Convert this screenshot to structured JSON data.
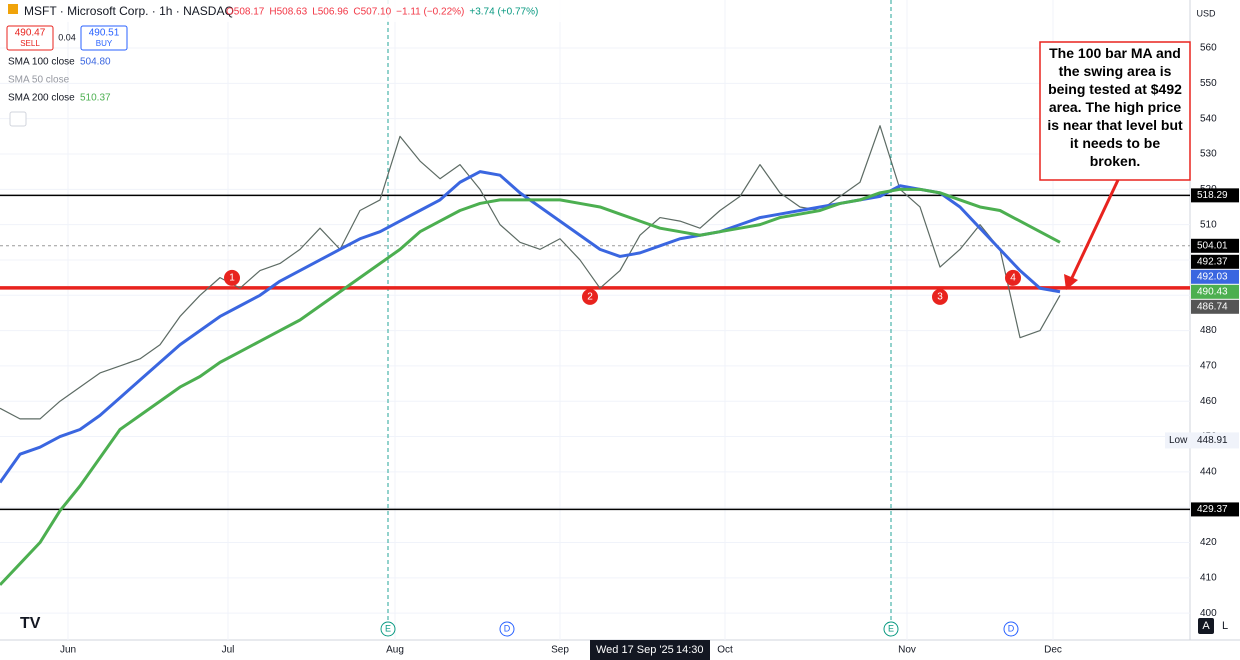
{
  "chart_data": {
    "type": "line",
    "price": {
      "color": "#5d6b64",
      "values": [
        458,
        455,
        455,
        460,
        464,
        468,
        470,
        472,
        476,
        484,
        490,
        495,
        492,
        497,
        499,
        503,
        509,
        503,
        514,
        517,
        535,
        528,
        523,
        527,
        520,
        510,
        505,
        503,
        506,
        500,
        492,
        497,
        507,
        512,
        511,
        509,
        514,
        518,
        527,
        519,
        515,
        514,
        518,
        522,
        538,
        520,
        515,
        498,
        503,
        510,
        503,
        478,
        480,
        490
      ]
    },
    "series": [
      {
        "name": "SMA 100 close",
        "color": "#3a66e0",
        "last": "504.80",
        "values": [
          437,
          445,
          447,
          450,
          452,
          456,
          461,
          466,
          471,
          476,
          480,
          484,
          487,
          490,
          494,
          497,
          500,
          503,
          506,
          508,
          511,
          514,
          517,
          522,
          525,
          524,
          519,
          515,
          511,
          507,
          503,
          501,
          502,
          504,
          506,
          507,
          508,
          510,
          512,
          513,
          514,
          515,
          516,
          517,
          518,
          521,
          520,
          519,
          515,
          509,
          503,
          497,
          492,
          491
        ]
      },
      {
        "name": "SMA 200 close",
        "color": "#4caf50",
        "last": "510.37",
        "values": [
          408,
          414,
          420,
          429,
          436,
          444,
          452,
          456,
          460,
          464,
          467,
          471,
          474,
          477,
          480,
          483,
          487,
          491,
          495,
          499,
          503,
          508,
          511,
          514,
          516,
          517,
          517,
          517,
          517,
          516,
          515,
          513,
          511,
          509,
          508,
          507,
          508,
          509,
          510,
          512,
          513,
          514,
          516,
          517,
          519,
          520,
          520,
          519,
          517,
          515,
          514,
          511,
          508,
          505
        ]
      }
    ],
    "ylim": [
      392.4,
      573.6
    ],
    "yticks": [
      400,
      410,
      420,
      430,
      440,
      450,
      460,
      470,
      480,
      490,
      500,
      510,
      520,
      530,
      540,
      550,
      560
    ],
    "xlim": [
      0,
      59.5
    ],
    "xticks": [
      {
        "value": 3.4,
        "label": "Jun"
      },
      {
        "value": 11.4,
        "label": "Jul"
      },
      {
        "value": 19.75,
        "label": "Aug"
      },
      {
        "value": 28,
        "label": "Sep"
      },
      {
        "value": 36.25,
        "label": "Oct"
      },
      {
        "value": 45.35,
        "label": "Nov"
      },
      {
        "value": 52.65,
        "label": "Dec"
      }
    ],
    "grid": true,
    "levels": [
      {
        "value": 518.29,
        "color": "#000000",
        "width": 1.5
      },
      {
        "value": 429.37,
        "color": "#000000",
        "width": 1.5
      },
      {
        "value": 492.1,
        "color": "#000000",
        "width": 1.5
      },
      {
        "value": 492.1,
        "color": "#e8231e",
        "width": 3.5
      },
      {
        "value": 504.01,
        "color": "#9a9a9a",
        "width": 1,
        "dash": true
      }
    ],
    "price_labels": [
      {
        "value": 518.29,
        "bg": "#000000",
        "fg": "#ffffff"
      },
      {
        "value": 504.01,
        "bg": "#000000",
        "fg": "#ffffff"
      },
      {
        "value": 492.37,
        "bg": "#000000",
        "fg": "#ffffff"
      },
      {
        "value": 492.03,
        "bg": "#3a66e0",
        "fg": "#ffffff"
      },
      {
        "value": 490.43,
        "bg": "#4caf50",
        "fg": "#ffffff"
      },
      {
        "value": 486.74,
        "bg": "#555555",
        "fg": "#ffffff"
      },
      {
        "value": 429.37,
        "bg": "#000000",
        "fg": "#ffffff"
      }
    ],
    "markers": [
      {
        "label": "1",
        "x": 11.6
      },
      {
        "label": "2",
        "x": 29.5
      },
      {
        "label": "3",
        "x": 47
      },
      {
        "label": "4",
        "x": 50.65
      }
    ],
    "marker_level": 492.1,
    "annotation": "The 100 bar MA and the swing area is being tested at $492 area.  The high price is near that level but it needs to be broken.",
    "low": {
      "label": "Low",
      "value": 448.91
    }
  },
  "ui": {
    "symbol": "MSFT · Microsoft Corp. · 1h · NASDAQ",
    "ohlc": [
      "O508.17",
      "H508.63",
      "L506.96",
      "C507.10",
      "−1.11 (−0.22%)",
      "+3.74 (+0.77%)"
    ],
    "sell_price": "490.47",
    "sell": "SELL",
    "spread": "0.04",
    "buy_price": "490.51",
    "buy": "BUY",
    "hidden_indicator": "SMA 50 close",
    "currency": "USD",
    "crosshair_date": "Wed 17 Sep '25",
    "crosshair_time": "14:30",
    "events": [
      {
        "label": "E",
        "x": 19.4,
        "line": true
      },
      {
        "label": "D",
        "x": 25.35
      },
      {
        "label": "E",
        "x": 44.55,
        "line": true
      },
      {
        "label": "D",
        "x": 50.55
      }
    ],
    "scale_buttons": [
      "A",
      "L"
    ]
  }
}
